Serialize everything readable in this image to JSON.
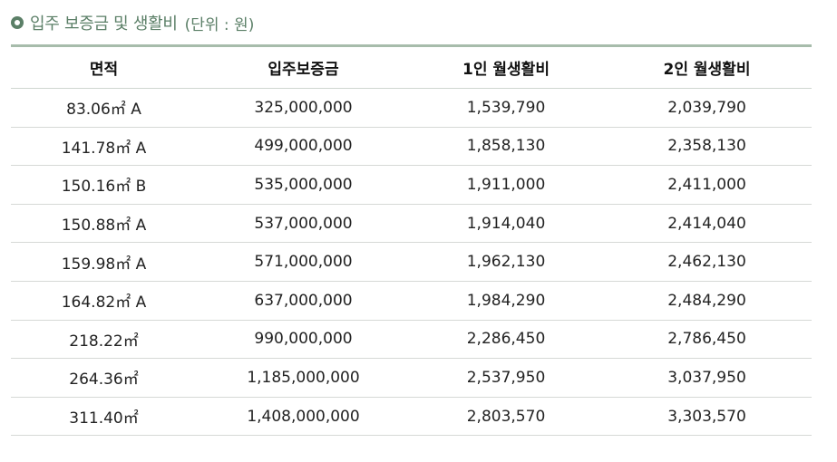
{
  "title": {
    "main": "입주 보증금 및 생활비",
    "unit": "(단위 : 원)"
  },
  "colors": {
    "accent": "#5b7f67",
    "header_border": "#a7bcab",
    "row_border": "#d6d9d6"
  },
  "icons": {
    "title_bullet": "circle-bullet-icon"
  },
  "table": {
    "headers": [
      "면적",
      "입주보증금",
      "1인 월생활비",
      "2인 월생활비"
    ],
    "rows": [
      [
        "83.06㎡ A",
        "325,000,000",
        "1,539,790",
        "2,039,790"
      ],
      [
        "141.78㎡ A",
        "499,000,000",
        "1,858,130",
        "2,358,130"
      ],
      [
        "150.16㎡ B",
        "535,000,000",
        "1,911,000",
        "2,411,000"
      ],
      [
        "150.88㎡ A",
        "537,000,000",
        "1,914,040",
        "2,414,040"
      ],
      [
        "159.98㎡ A",
        "571,000,000",
        "1,962,130",
        "2,462,130"
      ],
      [
        "164.82㎡ A",
        "637,000,000",
        "1,984,290",
        "2,484,290"
      ],
      [
        "218.22㎡",
        "990,000,000",
        "2,286,450",
        "2,786,450"
      ],
      [
        "264.36㎡",
        "1,185,000,000",
        "2,537,950",
        "3,037,950"
      ],
      [
        "311.40㎡",
        "1,408,000,000",
        "2,803,570",
        "3,303,570"
      ]
    ]
  }
}
